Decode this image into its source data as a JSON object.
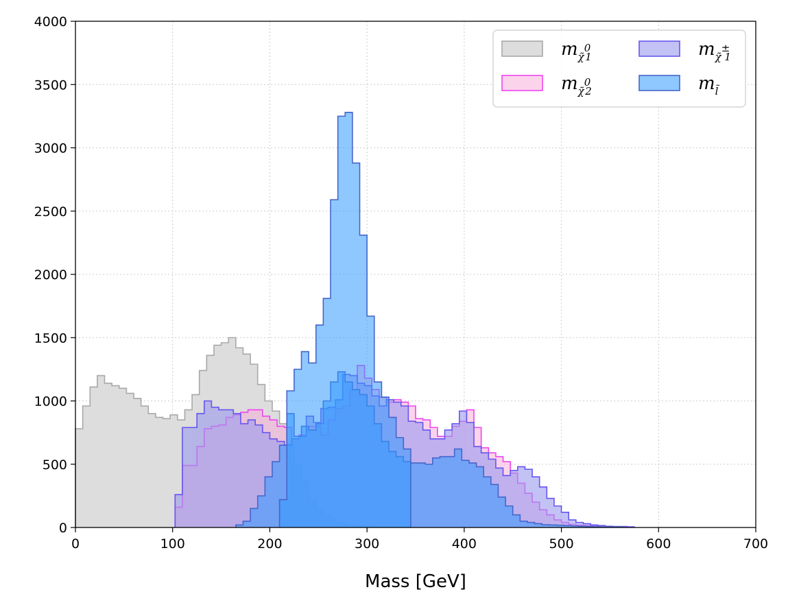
{
  "chart_data": {
    "type": "histogram",
    "xlabel": "Mass [GeV]",
    "ylabel": "",
    "xlim": [
      0,
      700
    ],
    "ylim": [
      0,
      4000
    ],
    "xticks": [
      "0",
      "100",
      "200",
      "300",
      "400",
      "500",
      "600",
      "700"
    ],
    "yticks": [
      "0",
      "500",
      "1000",
      "1500",
      "2000",
      "2500",
      "3000",
      "3500",
      "4000"
    ],
    "grid": true,
    "legend_placement": "top-right",
    "legend_columns": 2,
    "bin_width": 7.5,
    "series": [
      {
        "name": "m_χ̃₁⁰",
        "label_main": "m",
        "label_sub": "χ̃",
        "label_idx": "1",
        "label_sup": "0",
        "fill": "#dddddd",
        "fill_opacity": 1.0,
        "stroke": "#a8a8a8",
        "x_start": 0,
        "values": [
          780,
          960,
          1110,
          1200,
          1140,
          1120,
          1100,
          1060,
          1020,
          960,
          900,
          870,
          860,
          890,
          850,
          930,
          1050,
          1240,
          1360,
          1440,
          1460,
          1500,
          1420,
          1370,
          1290,
          1130,
          1000,
          920,
          820,
          660,
          500,
          370,
          220,
          150,
          95,
          60,
          40,
          25,
          15,
          10,
          5
        ]
      },
      {
        "name": "m_χ̃₂⁰",
        "label_main": "m",
        "label_sub": "χ̃",
        "label_idx": "2",
        "label_sup": "0",
        "fill": "#f7a8d8",
        "fill_opacity": 0.5,
        "stroke": "#ee44ee",
        "x_start": 102.5,
        "values": [
          160,
          490,
          490,
          640,
          780,
          800,
          810,
          870,
          890,
          910,
          930,
          930,
          880,
          850,
          800,
          790,
          700,
          730,
          800,
          800,
          730,
          850,
          940,
          960,
          1090,
          1280,
          1180,
          1090,
          1030,
          990,
          1010,
          990,
          960,
          860,
          850,
          790,
          720,
          720,
          800,
          840,
          930,
          790,
          630,
          590,
          560,
          520,
          430,
          350,
          270,
          200,
          140,
          100,
          60,
          40,
          25,
          18,
          15,
          12
        ]
      },
      {
        "name": "m_χ̃₁^±",
        "label_main": "m",
        "label_sub": "χ̃",
        "label_idx": "1",
        "label_sup": "±",
        "fill": "#9999ee",
        "fill_opacity": 0.6,
        "stroke": "#6655ee",
        "x_start": 102.5,
        "values": [
          260,
          790,
          790,
          900,
          1000,
          950,
          930,
          930,
          900,
          820,
          850,
          810,
          750,
          700,
          680,
          650,
          700,
          720,
          880,
          830,
          940,
          950,
          1010,
          1210,
          1200,
          1140,
          1120,
          1040,
          960,
          1010,
          990,
          960,
          840,
          830,
          770,
          700,
          700,
          770,
          820,
          920,
          830,
          640,
          590,
          540,
          470,
          410,
          450,
          480,
          460,
          400,
          320,
          230,
          170,
          120,
          60,
          40,
          30,
          20,
          15,
          10,
          8,
          8,
          5
        ]
      },
      {
        "name": "m_l̃",
        "label_main": "m",
        "label_sub": "l̃",
        "label_idx": "",
        "label_sup": "",
        "fill": "#3399ff",
        "fill_opacity": 0.55,
        "stroke": "#4466cc",
        "x_start": 165,
        "values": [
          20,
          50,
          150,
          250,
          400,
          520,
          650,
          900,
          720,
          800,
          770,
          820,
          1000,
          1150,
          1230,
          1150,
          1090,
          1050,
          960,
          820,
          680,
          600,
          560,
          520,
          510,
          510,
          500,
          550,
          560,
          560,
          620,
          530,
          510,
          480,
          400,
          340,
          240,
          170,
          100,
          50,
          40,
          30,
          22,
          20,
          18,
          15,
          12,
          10,
          8,
          6,
          5,
          5,
          5
        ]
      },
      {
        "name": "m_l̃ (peak)",
        "hidden_legend": true,
        "fill": "#3399ff",
        "fill_opacity": 0.55,
        "stroke": "#4466cc",
        "x_start": 210,
        "values": [
          220,
          1080,
          1250,
          1390,
          1300,
          1600,
          1810,
          2590,
          3250,
          3280,
          2880,
          2310,
          1670,
          1150,
          1030,
          870,
          710,
          620
        ]
      }
    ]
  }
}
